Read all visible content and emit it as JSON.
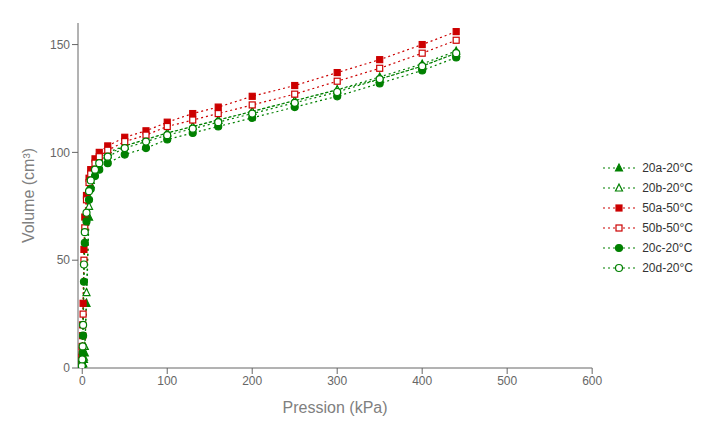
{
  "chart_data": {
    "type": "line",
    "xlabel": "Pression (kPa)",
    "ylabel": "Volume (cm³)",
    "xlim": [
      -5,
      600
    ],
    "ylim": [
      0,
      160
    ],
    "xticks": [
      0,
      100,
      200,
      300,
      400,
      500,
      600
    ],
    "yticks": [
      0,
      50,
      100,
      150
    ],
    "grid": false,
    "legend": "right",
    "line_style": "dotted",
    "x": [
      -3,
      -2,
      -1.5,
      -1,
      -0.5,
      0,
      0.5,
      1,
      2,
      3,
      5,
      8,
      10,
      15,
      20,
      30,
      50,
      75,
      100,
      130,
      160,
      200,
      250,
      300,
      350,
      400,
      440
    ],
    "series": [
      {
        "name": "20a-20°C",
        "color": "#008000",
        "marker": "triangle",
        "values": [
          0,
          0,
          0,
          0,
          0,
          0,
          1,
          2,
          4,
          7,
          30,
          70,
          85,
          93,
          96,
          99,
          103,
          106,
          109,
          112,
          115,
          119,
          124,
          129,
          135,
          141,
          147
        ]
      },
      {
        "name": "20b-20°C",
        "color": "#008000",
        "marker": "triangle-open",
        "values": [
          0,
          0,
          0,
          0,
          0,
          0,
          1,
          2,
          5,
          10,
          35,
          75,
          87,
          94,
          97,
          100,
          103,
          106,
          109,
          112,
          115,
          119,
          124,
          129,
          134,
          140,
          146
        ]
      },
      {
        "name": "50a-50°C",
        "color": "#cc0000",
        "marker": "square",
        "values": [
          0,
          0,
          0,
          2,
          5,
          10,
          20,
          30,
          55,
          70,
          80,
          88,
          92,
          97,
          100,
          103,
          107,
          110,
          114,
          118,
          121,
          126,
          131,
          137,
          143,
          150,
          156
        ]
      },
      {
        "name": "50b-50°C",
        "color": "#cc0000",
        "marker": "square-open",
        "values": [
          0,
          0,
          0,
          1,
          3,
          8,
          15,
          25,
          50,
          65,
          78,
          86,
          90,
          95,
          98,
          101,
          105,
          108,
          112,
          115,
          118,
          122,
          127,
          133,
          139,
          146,
          152
        ]
      },
      {
        "name": "20c-20°C",
        "color": "#008000",
        "marker": "circle",
        "values": [
          0,
          0,
          0,
          0,
          1,
          3,
          7,
          15,
          40,
          58,
          68,
          78,
          83,
          89,
          92,
          95,
          99,
          102,
          106,
          109,
          112,
          116,
          121,
          126,
          132,
          138,
          144
        ]
      },
      {
        "name": "20d-20°C",
        "color": "#008000",
        "marker": "circle-open",
        "values": [
          0,
          0,
          0,
          0,
          1,
          4,
          10,
          20,
          48,
          63,
          72,
          82,
          87,
          92,
          95,
          98,
          102,
          105,
          108,
          111,
          114,
          118,
          123,
          128,
          134,
          140,
          146
        ]
      }
    ]
  }
}
